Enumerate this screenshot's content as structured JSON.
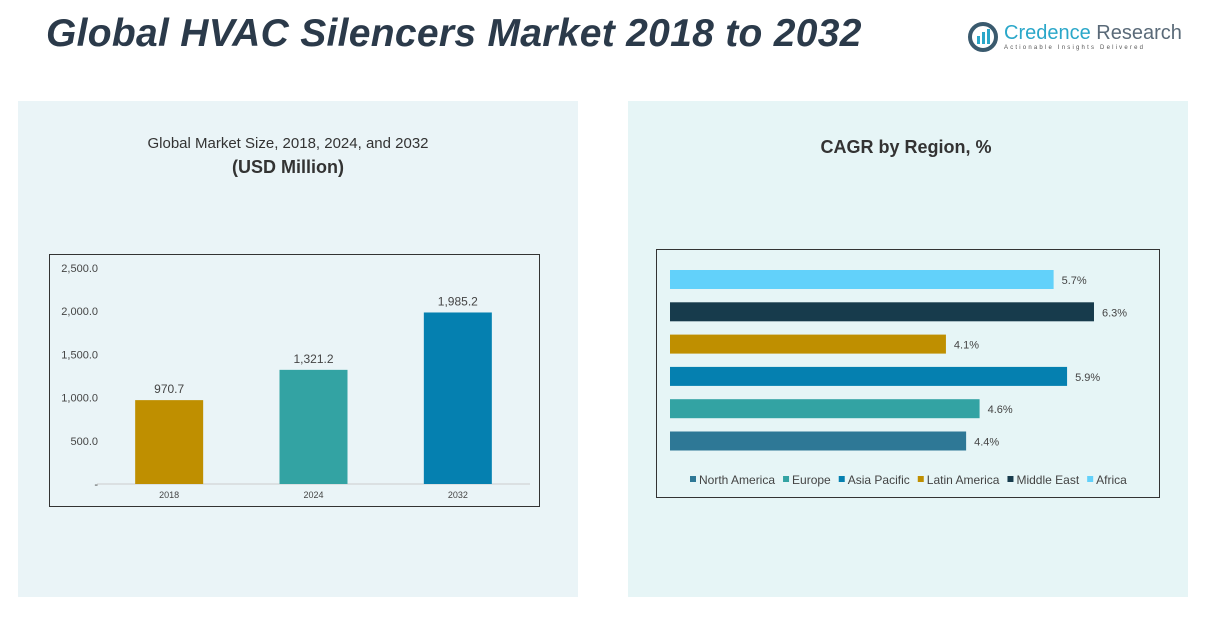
{
  "header": {
    "title": "Global HVAC Silencers Market 2018 to 2032",
    "logo_name_1": "Credence",
    "logo_name_2": "Research",
    "logo_tagline": "Actionable Insights Delivered"
  },
  "chart_data": [
    {
      "type": "bar",
      "title": "Global Market Size, 2018, 2024, and 2032",
      "subtitle": "(USD Million)",
      "categories": [
        "2018",
        "2024",
        "2032"
      ],
      "values": [
        970.7,
        1321.2,
        1985.2
      ],
      "value_labels": [
        "970.7",
        "1,321.2",
        "1,985.2"
      ],
      "colors": [
        "#bf8f00",
        "#33a3a3",
        "#0580b0"
      ],
      "ylim": [
        0,
        2500
      ],
      "yticks": [
        "-",
        "500.0",
        "1,000.0",
        "1,500.0",
        "2,000.0",
        "2,500.0"
      ],
      "grid": false
    },
    {
      "type": "bar",
      "orientation": "horizontal",
      "title": "CAGR by Region, %",
      "series": [
        {
          "name": "North America",
          "value": 4.4,
          "label": "4.4%",
          "color": "#2e7896"
        },
        {
          "name": "Europe",
          "value": 4.6,
          "label": "4.6%",
          "color": "#33a3a3"
        },
        {
          "name": "Asia Pacific",
          "value": 5.9,
          "label": "5.9%",
          "color": "#0580b0"
        },
        {
          "name": "Latin America",
          "value": 4.1,
          "label": "4.1%",
          "color": "#bf8f00"
        },
        {
          "name": "Middle East",
          "value": 6.3,
          "label": "6.3%",
          "color": "#173b4c"
        },
        {
          "name": "Africa",
          "value": 5.7,
          "label": "5.7%",
          "color": "#62d1fa"
        }
      ],
      "legend": "bottom"
    }
  ]
}
